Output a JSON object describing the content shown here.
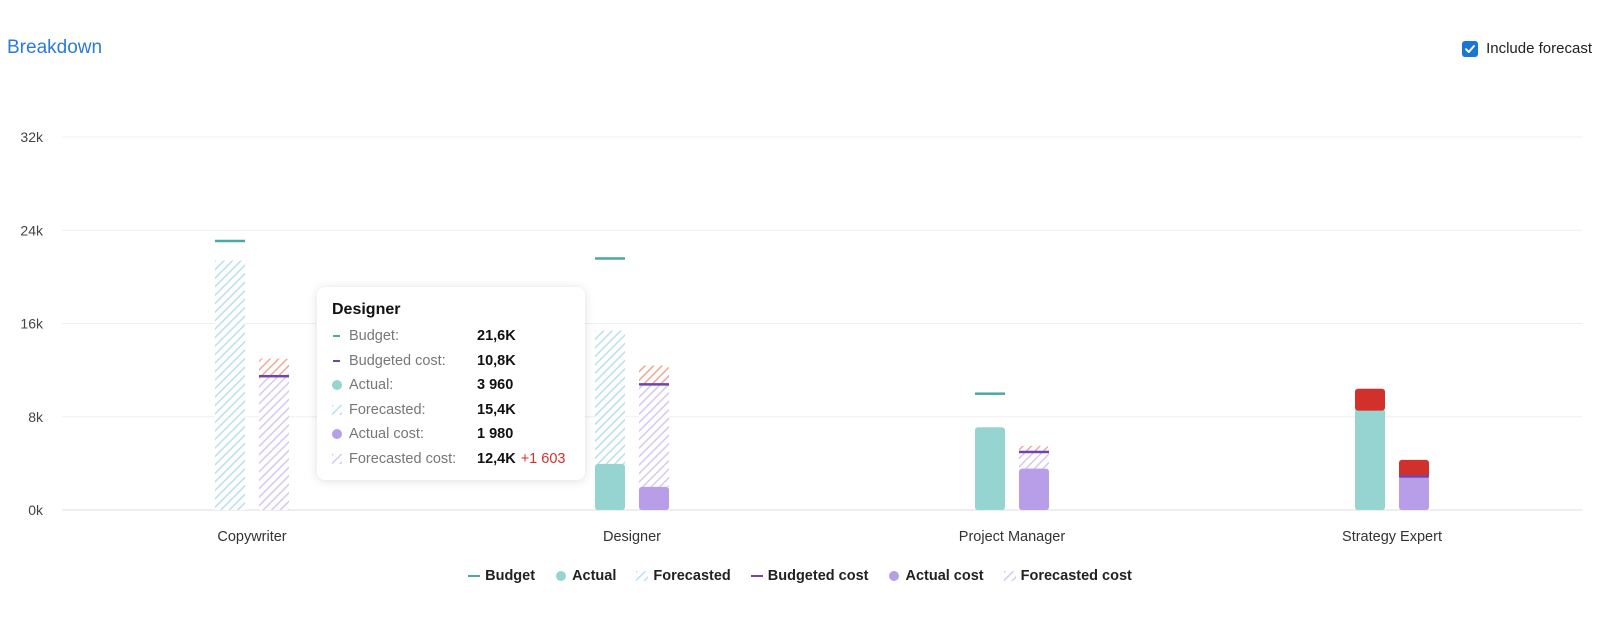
{
  "header": {
    "title": "Breakdown",
    "include_forecast_label": "Include forecast",
    "include_forecast_checked": true
  },
  "colors": {
    "budget": "#4aa8a8",
    "actual": "#95d4d0",
    "forecasted": "#b8e0f0",
    "budgeted_cost": "#7045b0",
    "actual_cost": "#b89ee8",
    "forecasted_cost": "#d6c8f2",
    "over_forecast": "#f0a898",
    "over_actual": "#d1302b",
    "title": "#2b7bd8"
  },
  "chart_data": {
    "type": "bar",
    "categories": [
      "Copywriter",
      "Designer",
      "Project Manager",
      "Strategy Expert"
    ],
    "ylim": [
      0,
      32000
    ],
    "y_ticks": [
      0,
      8000,
      16000,
      24000,
      32000
    ],
    "y_tick_labels": [
      "0k",
      "8k",
      "16k",
      "24k",
      "32k"
    ],
    "grid": true,
    "legend_position": "bottom",
    "series": [
      {
        "name": "Budget",
        "values": [
          23100,
          21600,
          10000,
          0
        ]
      },
      {
        "name": "Actual",
        "values": [
          0,
          3960,
          7100,
          10400
        ]
      },
      {
        "name": "Forecasted",
        "values": [
          21400,
          15400,
          7100,
          10400
        ]
      },
      {
        "name": "Budgeted cost",
        "values": [
          11500,
          10800,
          5000,
          2900
        ]
      },
      {
        "name": "Actual cost",
        "values": [
          0,
          1980,
          3550,
          3700
        ]
      },
      {
        "name": "Forecasted cost",
        "values": [
          13000,
          12400,
          5500,
          3700
        ]
      }
    ],
    "legend": [
      "Budget",
      "Actual",
      "Forecasted",
      "Budgeted cost",
      "Actual cost",
      "Forecasted cost"
    ],
    "tooltip": {
      "title": "Designer",
      "rows": [
        {
          "icon": "budget",
          "label": "Budget:",
          "value": "21,6K"
        },
        {
          "icon": "budgeted_cost",
          "label": "Budgeted cost:",
          "value": "10,8K"
        },
        {
          "icon": "actual",
          "label": "Actual:",
          "value": "3 960"
        },
        {
          "icon": "forecasted",
          "label": "Forecasted:",
          "value": "15,4K"
        },
        {
          "icon": "actual_cost",
          "label": "Actual cost:",
          "value": "1 980"
        },
        {
          "icon": "forecasted_cost",
          "label": "Forecasted cost:",
          "value": "12,4K",
          "delta": "+1 603"
        }
      ]
    }
  }
}
